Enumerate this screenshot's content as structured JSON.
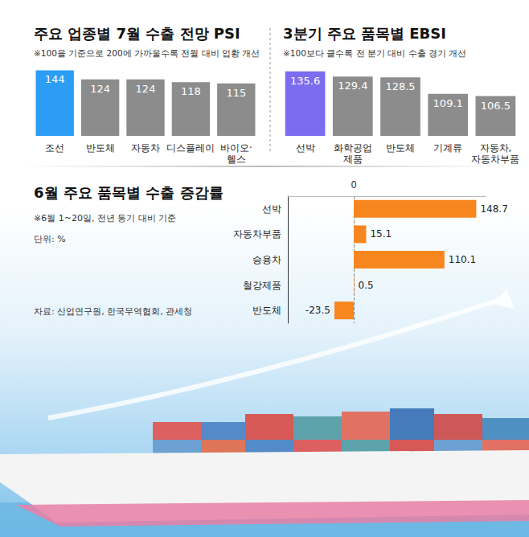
{
  "chart_data": [
    {
      "type": "bar",
      "title": "주요 업종별 7월 수출 전망 PSI",
      "subtitle": "※100을 기준으로 200에 가까울수록 전월 대비 업황 개선",
      "categories": [
        "조선",
        "반도체",
        "자동차",
        "디스플레이",
        "바이오·헬스"
      ],
      "values": [
        144,
        124,
        124,
        118,
        115
      ],
      "colors": [
        "#2b9df4",
        "#8c8c8c",
        "#8c8c8c",
        "#8c8c8c",
        "#8c8c8c"
      ],
      "ylim": [
        0,
        150
      ],
      "yticks": [
        0,
        150
      ],
      "grid": false,
      "data_labels": true,
      "tick_labels": "x"
    },
    {
      "type": "bar",
      "title": "3분기 주요 품목별 EBSI",
      "subtitle": "※100보다 클수록 전 분기 대비 수출 경기 개선",
      "categories": [
        "선박",
        "화학공업 제품",
        "반도체",
        "기계류",
        "자동차, 자동차부품"
      ],
      "values": [
        135.6,
        129.4,
        128.5,
        109.1,
        106.5
      ],
      "colors": [
        "#7b6cf0",
        "#8c8c8c",
        "#8c8c8c",
        "#8c8c8c",
        "#8c8c8c"
      ],
      "ylim": [
        60,
        140
      ],
      "yticks": [
        60,
        140
      ],
      "grid": false,
      "data_labels": true,
      "tick_labels": "x"
    },
    {
      "type": "bar",
      "orientation": "horizontal",
      "title": "6월 주요 품목별 수출 증감률",
      "subtitle": "※6월 1~20일, 전년 동기 대비 기준",
      "annotations": [
        "단위: %",
        "자료: 산업연구원, 한국무역협회, 관세청"
      ],
      "categories": [
        "선박",
        "자동차부품",
        "승용차",
        "철강제품",
        "반도체"
      ],
      "values": [
        148.7,
        15.1,
        110.1,
        0.5,
        -23.5
      ],
      "color": "#f7861f",
      "xlim": [
        -80,
        160
      ],
      "xticks": [
        0
      ],
      "grid": true,
      "data_labels": true
    }
  ]
}
